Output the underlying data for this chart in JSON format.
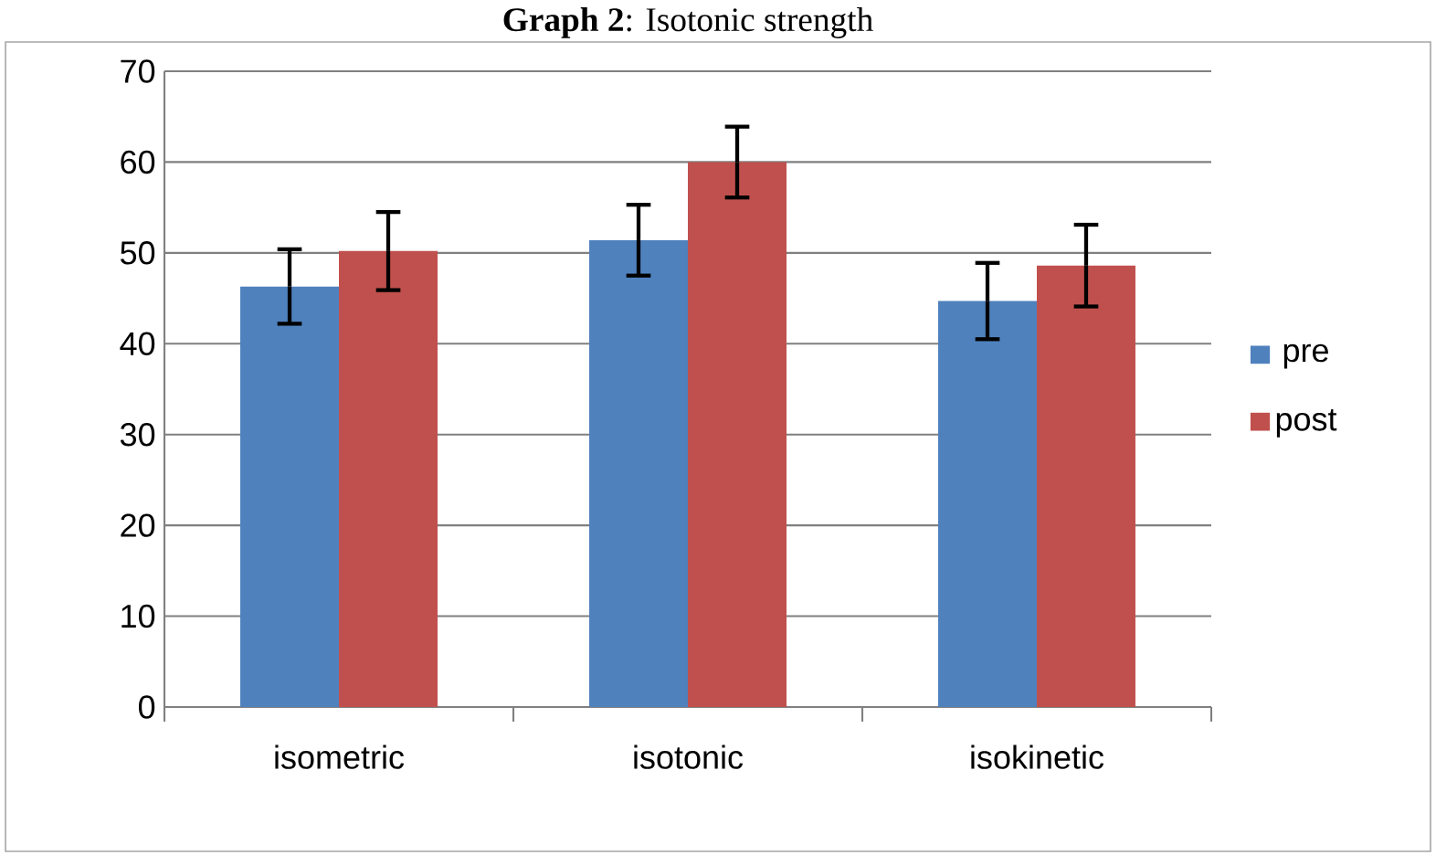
{
  "chart_data": {
    "type": "bar",
    "title": "**Graph 2**: Isotonic strength",
    "categories": [
      "isometric",
      "isotonic",
      "isokinetic"
    ],
    "series": [
      {
        "name": "pre",
        "color": "#4f81bd",
        "values": [
          46.3,
          51.4,
          44.7
        ],
        "errors": [
          4.1,
          3.9,
          4.2
        ]
      },
      {
        "name": "post",
        "color": "#c0504d",
        "values": [
          50.2,
          60.0,
          48.6
        ],
        "errors": [
          4.3,
          3.9,
          4.5
        ]
      }
    ],
    "ylim": [
      0,
      70
    ],
    "yticks": [
      0,
      10,
      20,
      30,
      40,
      50,
      60,
      70
    ],
    "grid": "y",
    "legend": "right"
  }
}
